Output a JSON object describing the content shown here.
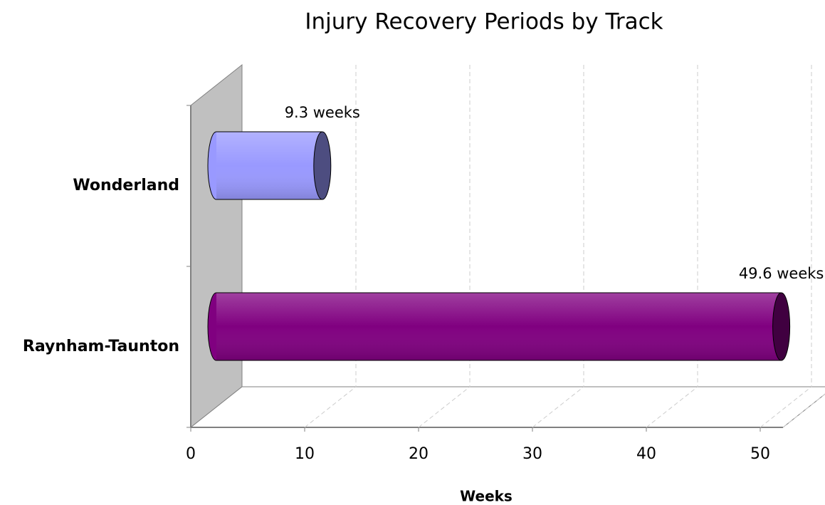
{
  "chart_data": {
    "type": "bar",
    "orientation": "horizontal",
    "title": "Injury Recovery Periods by Track",
    "categories": [
      "Wonderland",
      "Raynham-Taunton"
    ],
    "values": [
      9.3,
      49.6
    ],
    "value_labels": [
      "9.3 weeks",
      "49.6 weeks"
    ],
    "colors": [
      "#9999ff",
      "#800080"
    ],
    "xlabel": "Weeks",
    "xlim": [
      0,
      52
    ],
    "xticks": [
      0,
      10,
      20,
      30,
      40,
      50
    ],
    "grid": true
  }
}
